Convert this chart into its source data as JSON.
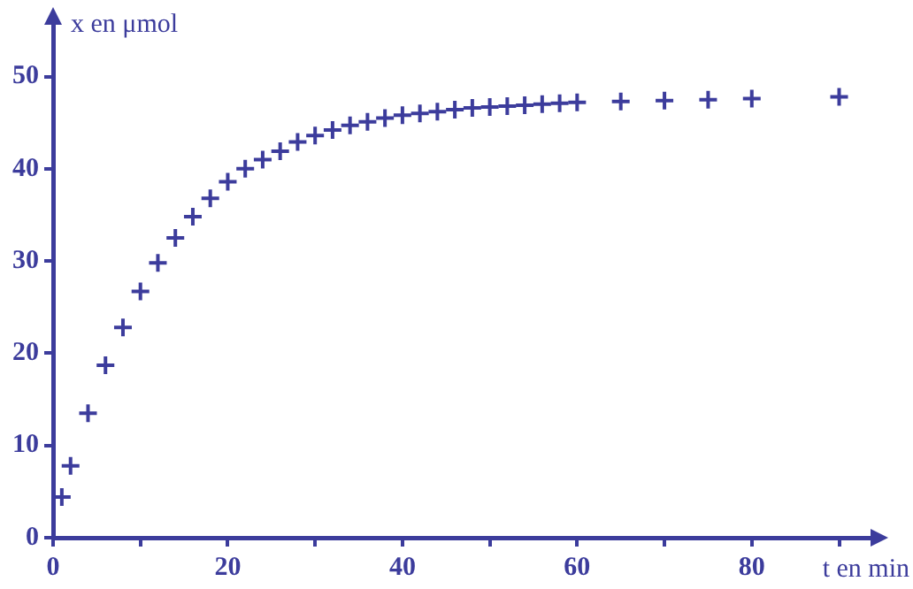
{
  "chart_data": {
    "type": "scatter",
    "xlabel": "t en min",
    "ylabel": "x en μmol",
    "marker": "cross",
    "grid": false,
    "legend": false,
    "xlim": [
      0,
      94
    ],
    "ylim": [
      0,
      56
    ],
    "xticks": [
      0,
      {
        "value": 10,
        "label": null
      },
      20,
      {
        "value": 30,
        "label": null
      },
      40,
      {
        "value": 50,
        "label": null
      },
      60,
      {
        "value": 70,
        "label": null
      },
      80,
      {
        "value": 90,
        "label": null
      }
    ],
    "yticks": [
      0,
      10,
      20,
      30,
      40,
      50
    ],
    "series": [
      {
        "color": "#3c3c9c",
        "x": [
          1,
          2,
          4,
          6,
          8,
          10,
          12,
          14,
          16,
          18,
          20,
          22,
          24,
          26,
          28,
          30,
          32,
          34,
          36,
          38,
          40,
          42,
          44,
          46,
          48,
          50,
          52,
          54,
          56,
          58,
          60,
          65,
          70,
          75,
          80,
          90
        ],
        "values": [
          4.4,
          7.8,
          13.5,
          18.7,
          22.8,
          26.7,
          29.8,
          32.5,
          34.8,
          36.8,
          38.6,
          40.0,
          41.0,
          41.9,
          42.9,
          43.6,
          44.2,
          44.7,
          45.1,
          45.5,
          45.8,
          46.0,
          46.2,
          46.4,
          46.6,
          46.7,
          46.8,
          46.9,
          47.0,
          47.1,
          47.2,
          47.3,
          47.4,
          47.5,
          47.6,
          47.8
        ]
      }
    ]
  }
}
